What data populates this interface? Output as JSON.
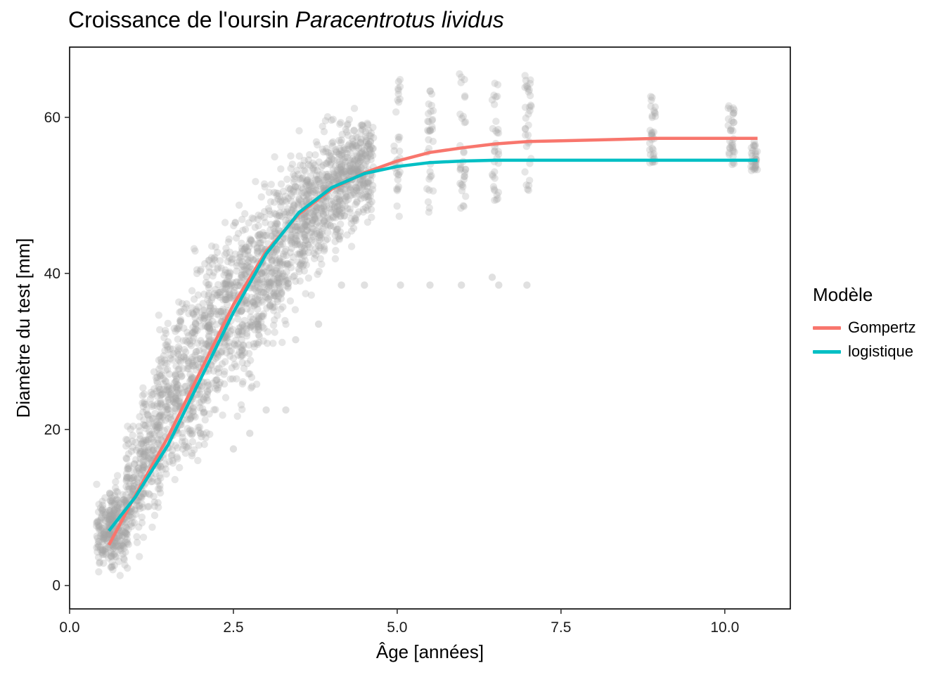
{
  "title": {
    "prefix": "Croissance de l'oursin ",
    "species": "Paracentrotus lividus"
  },
  "legend": {
    "title": "Modèle",
    "items": [
      {
        "label": "Gompertz",
        "color": "#F8766D"
      },
      {
        "label": "logistique",
        "color": "#00BFC4"
      }
    ]
  },
  "chart_data": {
    "type": "scatter",
    "xlabel": "Âge  [années]",
    "ylabel": "Diamètre du test  [mm]",
    "xlim": [
      0,
      11
    ],
    "ylim": [
      -3,
      69
    ],
    "x_ticks": [
      0,
      2.5,
      5,
      7.5,
      10
    ],
    "x_tick_labels": [
      "0.0",
      "2.5",
      "5.0",
      "7.5",
      "10.0"
    ],
    "y_ticks": [
      0,
      20,
      40,
      60
    ],
    "y_tick_labels": [
      "0",
      "20",
      "40",
      "60"
    ],
    "grid": false,
    "legend_position": "right",
    "point_color": "#A6A6A6",
    "points_note": "dense cloud of several thousand semi-transparent grey observations rising from ~0–13 mm at 0.5 yr to ~45–65 mm after 4.5 yr",
    "point_groups": [
      {
        "age": 0.55,
        "diameter_range": [
          0.2,
          13.5
        ]
      },
      {
        "age": 0.75,
        "diameter_range": [
          0.5,
          15
        ]
      },
      {
        "age": 1.0,
        "diameter_range": [
          2,
          24
        ]
      },
      {
        "age": 1.25,
        "diameter_range": [
          5,
          31
        ]
      },
      {
        "age": 1.5,
        "diameter_range": [
          8,
          37
        ]
      },
      {
        "age": 1.75,
        "diameter_range": [
          11,
          41
        ]
      },
      {
        "age": 2.0,
        "diameter_range": [
          13,
          46
        ]
      },
      {
        "age": 2.25,
        "diameter_range": [
          17,
          50
        ]
      },
      {
        "age": 2.5,
        "diameter_range": [
          20,
          52
        ]
      },
      {
        "age": 2.75,
        "diameter_range": [
          22,
          53
        ]
      },
      {
        "age": 3.0,
        "diameter_range": [
          26,
          55
        ]
      },
      {
        "age": 3.25,
        "diameter_range": [
          30,
          57
        ]
      },
      {
        "age": 3.5,
        "diameter_range": [
          33,
          59
        ]
      },
      {
        "age": 3.75,
        "diameter_range": [
          36,
          61
        ]
      },
      {
        "age": 4.0,
        "diameter_range": [
          40,
          62
        ]
      },
      {
        "age": 4.25,
        "diameter_range": [
          42,
          63
        ]
      },
      {
        "age": 4.5,
        "diameter_range": [
          44,
          64
        ]
      },
      {
        "age": 5.0,
        "diameter_range": [
          44,
          65.5
        ]
      },
      {
        "age": 5.5,
        "diameter_range": [
          45,
          63.5
        ]
      },
      {
        "age": 6.0,
        "diameter_range": [
          45,
          66
        ]
      },
      {
        "age": 6.5,
        "diameter_range": [
          46,
          65
        ]
      },
      {
        "age": 7.0,
        "diameter_range": [
          46.5,
          66.5
        ]
      },
      {
        "age": 8.9,
        "diameter_range": [
          52.5,
          63
        ]
      },
      {
        "age": 10.1,
        "diameter_range": [
          52.5,
          61.5
        ]
      },
      {
        "age": 10.45,
        "diameter_range": [
          52.5,
          57
        ]
      }
    ],
    "outliers": [
      {
        "x": 4.15,
        "y": 38.5
      },
      {
        "x": 4.5,
        "y": 38.5
      },
      {
        "x": 5.05,
        "y": 38.5
      },
      {
        "x": 5.5,
        "y": 38.5
      },
      {
        "x": 5.98,
        "y": 38.5
      },
      {
        "x": 6.45,
        "y": 39.5
      },
      {
        "x": 6.55,
        "y": 38.5
      },
      {
        "x": 6.98,
        "y": 38.5
      },
      {
        "x": 2.75,
        "y": 19.5
      },
      {
        "x": 3.0,
        "y": 22.5
      },
      {
        "x": 3.3,
        "y": 22.5
      },
      {
        "x": 2.5,
        "y": 17.5
      },
      {
        "x": 3.45,
        "y": 31.5
      },
      {
        "x": 3.8,
        "y": 33.5
      }
    ],
    "series": [
      {
        "name": "Gompertz",
        "color": "#F8766D",
        "x": [
          0.6,
          1.0,
          1.5,
          2.0,
          2.5,
          3.0,
          3.5,
          4.0,
          4.5,
          5.0,
          5.5,
          6.0,
          6.5,
          7.0,
          7.5,
          8.0,
          9.0,
          10.0,
          10.5
        ],
        "values": [
          5.2,
          11.5,
          19.0,
          27.5,
          36.0,
          42.8,
          47.6,
          50.8,
          52.9,
          54.4,
          55.5,
          56.1,
          56.6,
          56.9,
          57.0,
          57.1,
          57.3,
          57.3,
          57.3
        ]
      },
      {
        "name": "logistique",
        "color": "#00BFC4",
        "x": [
          0.6,
          1.0,
          1.5,
          2.0,
          2.5,
          3.0,
          3.5,
          4.0,
          4.5,
          5.0,
          5.5,
          6.0,
          6.5,
          7.0,
          7.5,
          8.0,
          9.0,
          10.0,
          10.5
        ],
        "values": [
          7.0,
          11.3,
          18.0,
          26.5,
          35.0,
          42.5,
          47.8,
          51.0,
          52.8,
          53.7,
          54.2,
          54.4,
          54.5,
          54.5,
          54.5,
          54.5,
          54.5,
          54.5,
          54.5
        ]
      }
    ]
  }
}
